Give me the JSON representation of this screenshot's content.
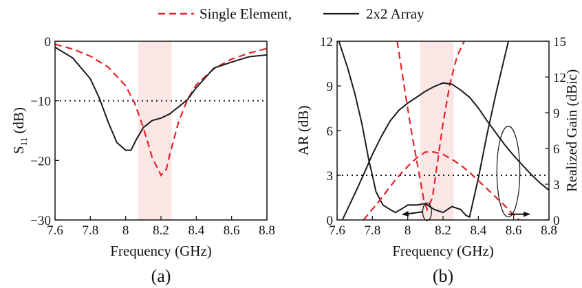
{
  "colors": {
    "single": "#e8202a",
    "array": "#1a1a1a",
    "band": "#fbe3e3",
    "ref": "#111111"
  },
  "legend": {
    "single_label": "Single Element,",
    "array_label": "2x2 Array"
  },
  "chart_data": [
    {
      "type": "line",
      "panel_label": "(a)",
      "xlabel": "Frequency (GHz)",
      "ylabel": "S",
      "ylabel_sub": "11",
      "ylabel_unit": " (dB)",
      "xlim": [
        7.6,
        8.8
      ],
      "ylim": [
        -30,
        0
      ],
      "xticks": [
        7.6,
        7.8,
        8.0,
        8.2,
        8.4,
        8.6,
        8.8
      ],
      "xtick_labels": [
        "7.6",
        "7.8",
        "8",
        "8.2",
        "8.4",
        "8.6",
        "8.8"
      ],
      "yticks": [
        0,
        -10,
        -20,
        -30
      ],
      "ytick_labels": [
        "0",
        "−10",
        "−20",
        "−30"
      ],
      "shaded_band": [
        8.07,
        8.26
      ],
      "reference_line": -10,
      "series": [
        {
          "name": "Single Element,",
          "style": "dashed",
          "x": [
            7.6,
            7.7,
            7.8,
            7.9,
            8.0,
            8.05,
            8.1,
            8.15,
            8.2,
            8.23,
            8.25,
            8.3,
            8.35,
            8.4,
            8.5,
            8.6,
            8.7,
            8.8
          ],
          "y": [
            -0.5,
            -1.3,
            -2.5,
            -4.3,
            -7.5,
            -10.3,
            -14.5,
            -19.5,
            -22.5,
            -21.5,
            -19.0,
            -13.5,
            -9.8,
            -7.3,
            -4.6,
            -3.0,
            -2.0,
            -1.2
          ]
        },
        {
          "name": "2x2 Array",
          "style": "solid",
          "x": [
            7.6,
            7.7,
            7.8,
            7.85,
            7.9,
            7.95,
            8.0,
            8.03,
            8.06,
            8.1,
            8.15,
            8.2,
            8.25,
            8.3,
            8.35,
            8.4,
            8.5,
            8.6,
            8.7,
            8.8
          ],
          "y": [
            -1.0,
            -2.8,
            -6.3,
            -9.5,
            -13.5,
            -17.0,
            -18.3,
            -18.3,
            -16.5,
            -14.5,
            -13.3,
            -12.9,
            -12.2,
            -11.0,
            -9.8,
            -7.8,
            -4.5,
            -3.5,
            -2.6,
            -2.3
          ]
        }
      ]
    },
    {
      "type": "line",
      "panel_label": "(b)",
      "xlabel": "Frequency (GHz)",
      "ylabel": "AR (dB)",
      "y2label": "Realized Gain (dBic)",
      "xlim": [
        7.6,
        8.8
      ],
      "ylim": [
        0,
        12
      ],
      "y2lim": [
        0,
        15
      ],
      "xticks": [
        7.6,
        7.8,
        8.0,
        8.2,
        8.4,
        8.6,
        8.8
      ],
      "xtick_labels": [
        "7.6",
        "7.8",
        "8",
        "8.2",
        "8.4",
        "8.6",
        "8.8"
      ],
      "yticks": [
        0,
        3,
        6,
        9,
        12
      ],
      "ytick_labels": [
        "0",
        "3",
        "6",
        "9",
        "12"
      ],
      "y2ticks": [
        0,
        3,
        6,
        9,
        12,
        15
      ],
      "y2tick_labels": [
        "0",
        "3",
        "6",
        "9",
        "12",
        "15"
      ],
      "shaded_band": [
        8.07,
        8.26
      ],
      "reference_line": 3,
      "annotations": {
        "ar_ellipse": {
          "cx": 8.11,
          "cy": 0.55,
          "rx": 0.025,
          "ry": 0.6,
          "arrow_to_x": 7.97
        },
        "gain_ellipse": {
          "cx": 8.57,
          "cy": 3.25,
          "rx": 0.065,
          "ry": 3.05,
          "arrow_to_x": 8.69
        }
      },
      "series": [
        {
          "name": "Single Element,",
          "quantity": "AR",
          "axis": "left",
          "style": "dashed",
          "x": [
            7.94,
            7.98,
            8.02,
            8.06,
            8.09,
            8.11,
            8.14,
            8.17,
            8.2,
            8.24,
            8.28,
            8.32
          ],
          "y": [
            12.0,
            9.0,
            6.0,
            3.4,
            1.4,
            0.7,
            1.5,
            4.0,
            6.5,
            9.2,
            11.0,
            12.0
          ]
        },
        {
          "name": "2x2 Array",
          "quantity": "AR",
          "axis": "left",
          "style": "solid",
          "x": [
            7.61,
            7.66,
            7.7,
            7.74,
            7.78,
            7.8,
            7.82,
            7.86,
            7.9,
            7.93,
            7.96,
            8.0,
            8.05,
            8.1,
            8.15,
            8.2,
            8.25,
            8.3,
            8.33,
            8.35,
            8.4,
            8.45,
            8.5,
            8.55,
            8.57
          ],
          "y": [
            12.0,
            10.2,
            8.5,
            6.5,
            4.0,
            3.0,
            1.9,
            1.0,
            0.7,
            0.5,
            0.7,
            1.0,
            1.0,
            1.1,
            0.7,
            0.5,
            0.9,
            0.7,
            0.3,
            0.2,
            2.8,
            5.8,
            8.5,
            11.0,
            12.0
          ]
        },
        {
          "name": "Single Element,",
          "quantity": "Realized Gain",
          "axis": "right",
          "style": "dashed",
          "x": [
            7.75,
            7.8,
            7.85,
            7.9,
            7.95,
            8.0,
            8.05,
            8.1,
            8.15,
            8.2,
            8.25,
            8.3,
            8.35,
            8.4,
            8.45,
            8.5,
            8.55,
            8.6,
            8.63
          ],
          "y": [
            0.0,
            0.9,
            1.8,
            2.8,
            3.7,
            4.5,
            5.2,
            5.7,
            5.7,
            5.5,
            5.1,
            4.6,
            4.0,
            3.3,
            2.6,
            1.9,
            1.2,
            0.4,
            0.0
          ]
        },
        {
          "name": "2x2 Array",
          "quantity": "Realized Gain",
          "axis": "right",
          "style": "solid",
          "x": [
            7.63,
            7.7,
            7.75,
            7.8,
            7.85,
            7.9,
            7.95,
            8.0,
            8.05,
            8.1,
            8.15,
            8.2,
            8.25,
            8.3,
            8.35,
            8.4,
            8.45,
            8.5,
            8.55,
            8.6,
            8.65,
            8.7,
            8.75,
            8.8
          ],
          "y": [
            0.0,
            2.2,
            3.8,
            5.5,
            7.0,
            8.3,
            9.2,
            9.8,
            10.3,
            10.8,
            11.2,
            11.5,
            11.4,
            10.9,
            10.3,
            9.4,
            8.3,
            7.3,
            6.3,
            5.4,
            4.6,
            3.8,
            3.1,
            2.5
          ]
        }
      ]
    }
  ]
}
